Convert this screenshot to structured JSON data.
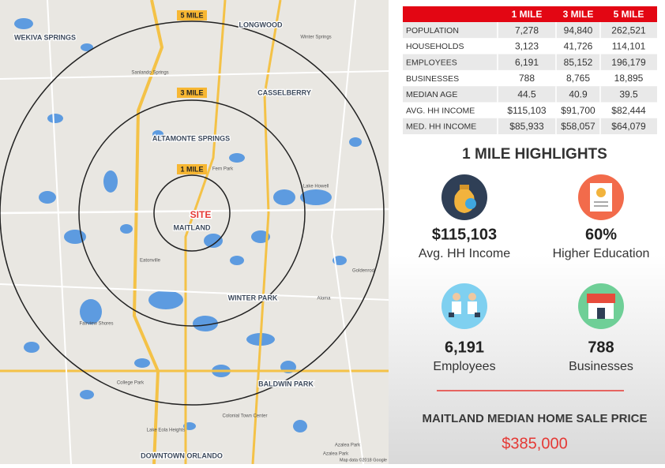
{
  "map": {
    "ring_labels": [
      "5 MILE",
      "3 MILE",
      "1 MILE"
    ],
    "site": "SITE",
    "places": [
      "WEKIVA SPRINGS",
      "LONGWOOD",
      "CASSELBERRY",
      "ALTAMONTE SPRINGS",
      "MAITLAND",
      "WINTER PARK",
      "BALDWIN PARK",
      "DOWNTOWN ORLANDO"
    ],
    "minor_places": [
      "Winter Springs",
      "Fairview Shores",
      "Eatonville",
      "Goldenrod",
      "Azalea Park",
      "College Park",
      "Lake Eola Heights",
      "Colonial Town Center",
      "Sanlando Springs",
      "Fern Park",
      "Lake Howell",
      "Azalea Park",
      "Aloma"
    ],
    "attribution": "Map data ©2018 Google"
  },
  "table": {
    "columns": [
      "1 MILE",
      "3 MILE",
      "5 MILE"
    ],
    "rows": [
      [
        "POPULATION",
        "7,278",
        "94,840",
        "262,521"
      ],
      [
        "HOUSEHOLDS",
        "3,123",
        "41,726",
        "114,101"
      ],
      [
        "EMPLOYEES",
        "6,191",
        "85,152",
        "196,179"
      ],
      [
        "BUSINESSES",
        "788",
        "8,765",
        "18,895"
      ],
      [
        "MEDIAN AGE",
        "44.5",
        "40.9",
        "39.5"
      ],
      [
        "AVG. HH INCOME",
        "$115,103",
        "$91,700",
        "$82,444"
      ],
      [
        "MED. HH INCOME",
        "$85,933",
        "$58,057",
        "$64,079"
      ]
    ]
  },
  "highlights": {
    "title": "1 MILE HIGHLIGHTS",
    "items": [
      {
        "value": "$115,103",
        "label": "Avg. HH Income"
      },
      {
        "value": "60%",
        "label": "Higher Education"
      },
      {
        "value": "6,191",
        "label": "Employees"
      },
      {
        "value": "788",
        "label": "Businesses"
      }
    ]
  },
  "footer": {
    "title": "MAITLAND MEDIAN HOME SALE PRICE",
    "price": "$385,000"
  }
}
